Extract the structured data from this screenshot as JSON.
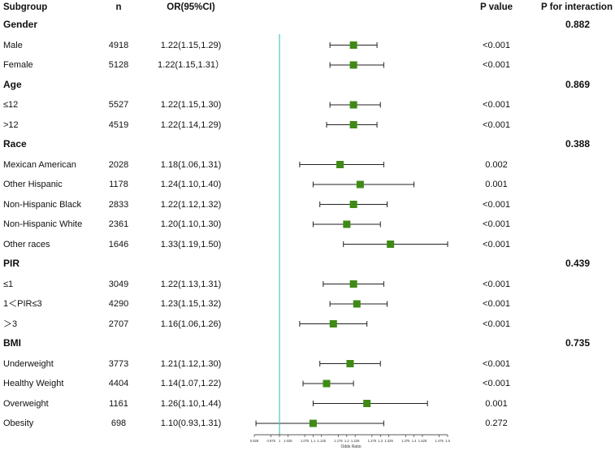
{
  "headers": {
    "subgroup": "Subgroup",
    "n": "n",
    "or": "OR(95%CI)",
    "p": "P value",
    "p_int": "P for interaction"
  },
  "chart_data": {
    "type": "forest",
    "xlabel": "Odds Ratio",
    "reference_line": 1.0,
    "xlim": [
      0.925,
      1.5
    ],
    "ticks": [
      "0.925",
      "0.975",
      "1",
      "1.025",
      "1.075",
      "1.1",
      "1.125",
      "1.175",
      "1.2",
      "1.225",
      "1.275",
      "1.3",
      "1.325",
      "1.375",
      "1.4",
      "1.425",
      "1.475",
      "1.5"
    ],
    "groups": [
      {
        "name": "Gender",
        "p_interaction": "0.882",
        "rows": [
          {
            "label": "Male",
            "n": "4918",
            "ci_text": "1.22(1.15,1.29)",
            "or": 1.22,
            "lo": 1.15,
            "hi": 1.29,
            "p": "<0.001"
          },
          {
            "label": "Female",
            "n": "5128",
            "ci_text": "1.22(1.15,1.31）",
            "or": 1.22,
            "lo": 1.15,
            "hi": 1.31,
            "p": "<0.001"
          }
        ]
      },
      {
        "name": "Age",
        "p_interaction": "0.869",
        "rows": [
          {
            "label": "≤12",
            "n": "5527",
            "ci_text": "1.22(1.15,1.30)",
            "or": 1.22,
            "lo": 1.15,
            "hi": 1.3,
            "p": "<0.001"
          },
          {
            "label": ">12",
            "n": "4519",
            "ci_text": "1.22(1.14,1.29)",
            "or": 1.22,
            "lo": 1.14,
            "hi": 1.29,
            "p": "<0.001"
          }
        ]
      },
      {
        "name": "Race",
        "p_interaction": "0.388",
        "rows": [
          {
            "label": "Mexican American",
            "n": "2028",
            "ci_text": "1.18(1.06,1.31)",
            "or": 1.18,
            "lo": 1.06,
            "hi": 1.31,
            "p": "0.002"
          },
          {
            "label": "Other Hispanic",
            "n": "1178",
            "ci_text": "1.24(1.10,1.40)",
            "or": 1.24,
            "lo": 1.1,
            "hi": 1.4,
            "p": "0.001"
          },
          {
            "label": "Non-Hispanic Black",
            "n": "2833",
            "ci_text": "1.22(1.12,1.32)",
            "or": 1.22,
            "lo": 1.12,
            "hi": 1.32,
            "p": "<0.001"
          },
          {
            "label": "Non-Hispanic White",
            "n": "2361",
            "ci_text": "1.20(1.10,1.30)",
            "or": 1.2,
            "lo": 1.1,
            "hi": 1.3,
            "p": "<0.001"
          },
          {
            "label": "Other races",
            "n": "1646",
            "ci_text": "1.33(1.19,1.50)",
            "or": 1.33,
            "lo": 1.19,
            "hi": 1.5,
            "p": "<0.001"
          }
        ]
      },
      {
        "name": "PIR",
        "p_interaction": "0.439",
        "rows": [
          {
            "label": "≤1",
            "n": "3049",
            "ci_text": "1.22(1.13,1.31)",
            "or": 1.22,
            "lo": 1.13,
            "hi": 1.31,
            "p": "<0.001"
          },
          {
            "label": "1＜PIR≤3",
            "n": "4290",
            "ci_text": "1.23(1.15,1.32)",
            "or": 1.23,
            "lo": 1.15,
            "hi": 1.32,
            "p": "<0.001"
          },
          {
            "label": "＞3",
            "n": "2707",
            "ci_text": "1.16(1.06,1.26)",
            "or": 1.16,
            "lo": 1.06,
            "hi": 1.26,
            "p": "<0.001"
          }
        ]
      },
      {
        "name": "BMI",
        "p_interaction": "0.735",
        "rows": [
          {
            "label": "Underweight",
            "n": "3773",
            "ci_text": "1.21(1.12,1.30)",
            "or": 1.21,
            "lo": 1.12,
            "hi": 1.3,
            "p": "<0.001"
          },
          {
            "label": "Healthy Weight",
            "n": "4404",
            "ci_text": "1.14(1.07,1.22)",
            "or": 1.14,
            "lo": 1.07,
            "hi": 1.22,
            "p": "<0.001"
          },
          {
            "label": "Overweight",
            "n": "1161",
            "ci_text": "1.26(1.10,1.44)",
            "or": 1.26,
            "lo": 1.1,
            "hi": 1.44,
            "p": "0.001"
          },
          {
            "label": "Obesity",
            "n": "698",
            "ci_text": "1.10(0.93,1.31)",
            "or": 1.1,
            "lo": 0.93,
            "hi": 1.31,
            "p": "0.272"
          }
        ]
      }
    ]
  },
  "colors": {
    "marker": "#3f8a16",
    "reference": "#4cc4c8",
    "line": "#222222"
  }
}
